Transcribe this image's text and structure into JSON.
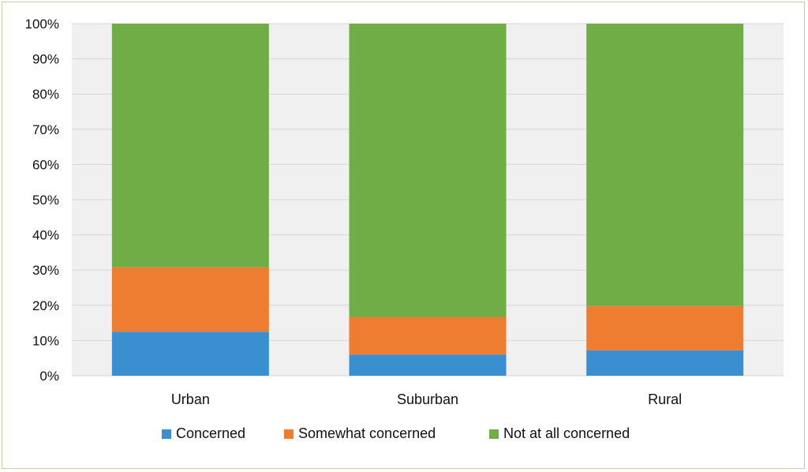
{
  "chart_data": {
    "type": "bar",
    "stacked": true,
    "normalized_percent": true,
    "categories": [
      "Urban",
      "Suburban",
      "Rural"
    ],
    "series": [
      {
        "name": "Concerned",
        "color": "#3a8fd0",
        "values": [
          12.5,
          6,
          7.2
        ]
      },
      {
        "name": "Somewhat concerned",
        "color": "#ee7d31",
        "values": [
          18.3,
          10.7,
          12.6
        ]
      },
      {
        "name": "Not at all concerned",
        "color": "#70ad47",
        "values": [
          69.2,
          83.3,
          80.2
        ]
      }
    ],
    "ylim": [
      0,
      100
    ],
    "yticks": [
      "0%",
      "10%",
      "20%",
      "30%",
      "40%",
      "50%",
      "60%",
      "70%",
      "80%",
      "90%",
      "100%"
    ],
    "grid": true,
    "legend_position": "bottom",
    "title": "",
    "xlabel": "",
    "ylabel": ""
  },
  "colors": {
    "plot_background": "#f0f0f0",
    "gridline": "#d6d6d6",
    "frame_border": "#c9c9a3"
  }
}
